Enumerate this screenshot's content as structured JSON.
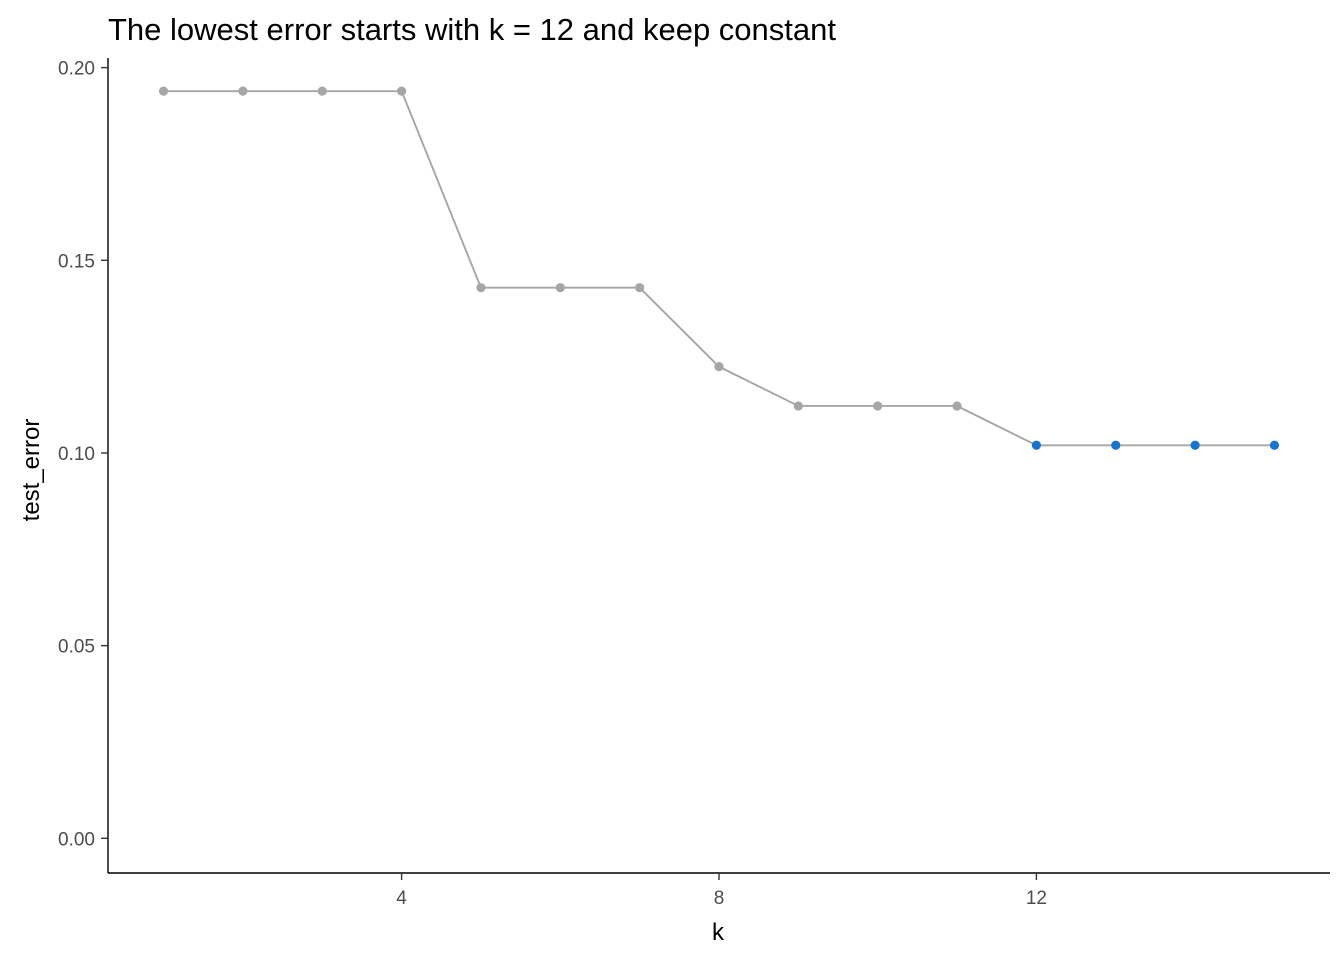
{
  "chart_data": {
    "type": "line",
    "title": "The lowest error starts with k = 12 and keep constant",
    "xlabel": "k",
    "ylabel": "test_error",
    "xlim": [
      0.3,
      15.7
    ],
    "ylim": [
      -0.009,
      0.2025
    ],
    "x_ticks": [
      4,
      8,
      12
    ],
    "y_ticks": [
      0.0,
      0.05,
      0.1,
      0.15,
      0.2
    ],
    "x_tick_labels": [
      "4",
      "8",
      "12"
    ],
    "y_tick_labels": [
      "0.00",
      "0.05",
      "0.10",
      "0.15",
      "0.20"
    ],
    "grid": false,
    "legend": "none",
    "colors": {
      "line": "#a6a6a6",
      "point": "#a6a6a6",
      "highlight": "#1874cd",
      "axis": "#000000"
    },
    "x": [
      1,
      2,
      3,
      4,
      5,
      6,
      7,
      8,
      9,
      10,
      11,
      12,
      13,
      14,
      15
    ],
    "series": [
      {
        "values": [
          0.1939,
          0.1939,
          0.1939,
          0.1939,
          0.1429,
          0.1429,
          0.1429,
          0.1224,
          0.1122,
          0.1122,
          0.1122,
          0.102,
          0.102,
          0.102,
          0.102
        ],
        "highlight_from_k": 12
      }
    ]
  }
}
